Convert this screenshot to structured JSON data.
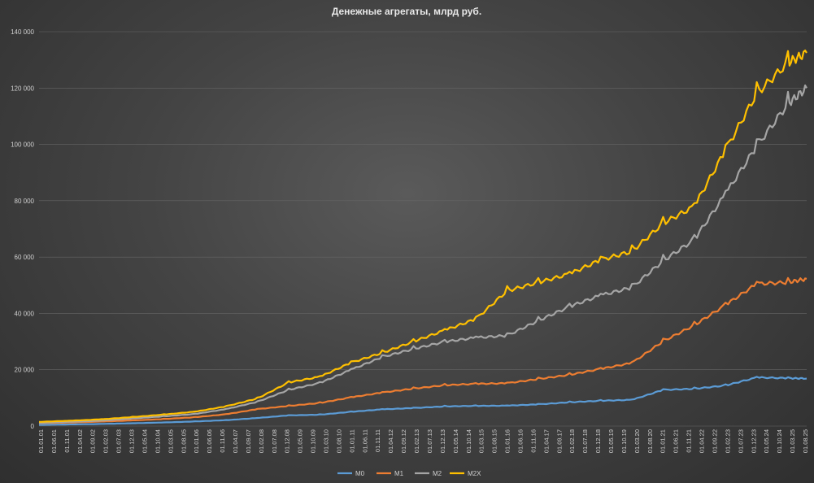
{
  "chart_data": {
    "type": "line",
    "title": "Денежные агрегаты, млрд руб.",
    "xlabel": "",
    "ylabel": "",
    "ylim": [
      0,
      140000
    ],
    "y_ticks": [
      0,
      20000,
      40000,
      60000,
      80000,
      100000,
      120000,
      140000
    ],
    "y_tick_labels": [
      "0",
      "20 000",
      "40 000",
      "60 000",
      "80 000",
      "100 000",
      "120 000",
      "140 000"
    ],
    "grid": true,
    "legend_position": "bottom",
    "x_tick_labels": [
      "01.01.01",
      "01.06.01",
      "01.11.01",
      "01.04.02",
      "01.09.02",
      "01.02.03",
      "01.07.03",
      "01.12.03",
      "01.05.04",
      "01.10.04",
      "01.03.05",
      "01.08.05",
      "01.01.06",
      "01.06.06",
      "01.11.06",
      "01.04.07",
      "01.09.07",
      "01.02.08",
      "01.07.08",
      "01.12.08",
      "01.05.09",
      "01.10.09",
      "01.03.10",
      "01.08.10",
      "01.01.11",
      "01.06.11",
      "01.11.11",
      "01.04.12",
      "01.09.12",
      "01.02.13",
      "01.07.13",
      "01.12.13",
      "01.05.14",
      "01.10.14",
      "01.03.15",
      "01.08.15",
      "01.01.16",
      "01.06.16",
      "01.11.16",
      "01.04.17",
      "01.09.17",
      "01.02.18",
      "01.07.18",
      "01.12.18",
      "01.05.19",
      "01.10.19",
      "01.03.20",
      "01.08.20",
      "01.01.21",
      "01.06.21",
      "01.11.21",
      "01.04.22",
      "01.09.22",
      "01.02.23",
      "01.07.23",
      "01.12.23",
      "01.05.24",
      "01.10.24",
      "01.03.25",
      "01.08.25"
    ],
    "x_years": [
      2001,
      2002,
      2003,
      2004,
      2005,
      2006,
      2007,
      2008,
      2009,
      2010,
      2011,
      2012,
      2013,
      2014,
      2015,
      2016,
      2017,
      2018,
      2019,
      2020,
      2021,
      2022,
      2023,
      2024,
      2025,
      2025.6
    ],
    "series": [
      {
        "name": "M0",
        "color": "#5b9bd5",
        "values": [
          420,
          580,
          760,
          1000,
          1280,
          1650,
          2100,
          2860,
          3790,
          4040,
          5060,
          5940,
          6400,
          6990,
          7170,
          7240,
          7710,
          8450,
          9000,
          9300,
          12840,
          13240,
          14410,
          17250,
          17000,
          16900
        ]
      },
      {
        "name": "M1",
        "color": "#ed7d31",
        "values": [
          1050,
          1250,
          1600,
          2000,
          2500,
          3150,
          4200,
          6010,
          7150,
          8200,
          10200,
          11900,
          13300,
          14500,
          15000,
          15200,
          16700,
          18200,
          20300,
          22400,
          30100,
          35800,
          43000,
          50500,
          51000,
          52300
        ]
      },
      {
        "name": "M2",
        "color": "#a5a5a5",
        "values": [
          1150,
          1500,
          1930,
          2680,
          3450,
          4300,
          6030,
          8600,
          12860,
          15300,
          20000,
          24500,
          27400,
          29930,
          31400,
          32100,
          37420,
          42440,
          46400,
          49200,
          58650,
          66250,
          82400,
          99400,
          114400,
          120000
        ]
      },
      {
        "name": "M2X",
        "color": "#ffc000",
        "values": [
          1500,
          1900,
          2400,
          3200,
          4100,
          5100,
          7000,
          9800,
          15500,
          17500,
          22500,
          26000,
          30000,
          34000,
          38000,
          48000,
          51000,
          54000,
          59000,
          62000,
          72000,
          78000,
          98000,
          118000,
          129000,
          132500
        ]
      }
    ]
  }
}
